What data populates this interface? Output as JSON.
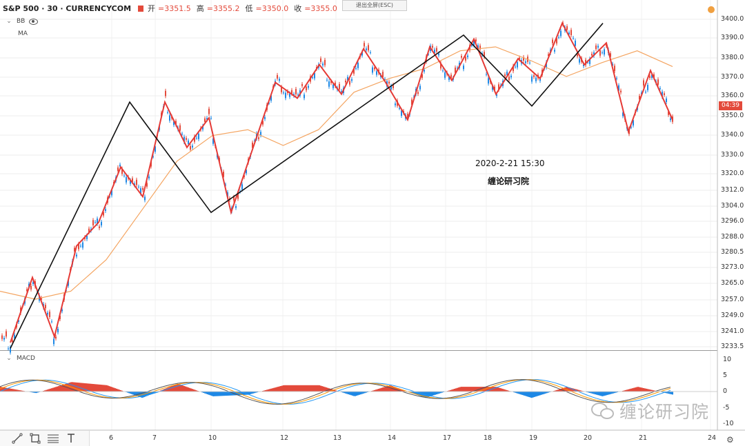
{
  "header": {
    "symbol": "S&P 500 · 30 · CURRENCYCOM",
    "open_label": "开",
    "open_value": "=3351.5",
    "high_label": "高",
    "high_value": "=3355.2",
    "low_label": "低",
    "low_value": "=3350.0",
    "close_label": "收",
    "close_value": "=3355.0"
  },
  "indicators": {
    "bb": "BB",
    "ma": "MA",
    "macd": "MACD"
  },
  "exit_fullscreen": "退出全屏(ESC)",
  "current_price_tag": "04:39",
  "annotation": {
    "datetime": "2020-2-21  15:30",
    "author": "缠论研习院"
  },
  "watermark": "缠论研习院",
  "colors": {
    "up": "#26a69a",
    "down": "#e34a3b",
    "bar": "#1e88e5",
    "zigzag_red": "#e53935",
    "zigzag_black": "#111111",
    "ma": "#f4a460"
  },
  "chart_data": {
    "type": "line",
    "title": "S&P 500 · 30 · CURRENCYCOM",
    "price_axis": [
      "3400.0",
      "3390.0",
      "3380.0",
      "3370.0",
      "3360.0",
      "3350.0",
      "3340.0",
      "3330.0",
      "3320.0",
      "3312.0",
      "3304.0",
      "3296.0",
      "3288.0",
      "3280.5",
      "3273.0",
      "3265.0",
      "3257.0",
      "3249.0",
      "3241.0",
      "3233.5"
    ],
    "macd_axis": [
      "10",
      "5",
      "0",
      "-5",
      "-10"
    ],
    "time_axis": [
      "6",
      "7",
      "10",
      "12",
      "13",
      "14",
      "17",
      "18",
      "19",
      "20",
      "21",
      "24"
    ],
    "ylim": [
      3233.5,
      3400
    ],
    "macd_ylim": [
      -10,
      10
    ],
    "zigzag_red": [
      [
        0,
        3236
      ],
      [
        1,
        3269
      ],
      [
        2,
        3239
      ],
      [
        3,
        3285
      ],
      [
        4,
        3297
      ],
      [
        5,
        3325
      ],
      [
        6,
        3310
      ],
      [
        7,
        3358
      ],
      [
        8,
        3335
      ],
      [
        9,
        3350
      ],
      [
        10,
        3302
      ],
      [
        11,
        3335
      ],
      [
        12,
        3368
      ],
      [
        13,
        3360
      ],
      [
        14,
        3377
      ],
      [
        15,
        3362
      ],
      [
        16,
        3385
      ],
      [
        17,
        3368
      ],
      [
        18,
        3349
      ],
      [
        19,
        3386
      ],
      [
        20,
        3369
      ],
      [
        21,
        3390
      ],
      [
        22,
        3362
      ],
      [
        23,
        3380
      ],
      [
        24,
        3370
      ],
      [
        25,
        3398
      ],
      [
        26,
        3377
      ],
      [
        27,
        3388
      ],
      [
        28,
        3343
      ],
      [
        29,
        3374
      ],
      [
        30,
        3349
      ]
    ],
    "zigzag_black": [
      [
        0,
        3233
      ],
      [
        1,
        3358
      ],
      [
        2,
        3302
      ],
      [
        3,
        3392
      ],
      [
        4,
        3356
      ],
      [
        5,
        3398
      ]
    ],
    "ma": [
      [
        0,
        3262
      ],
      [
        1,
        3258
      ],
      [
        2,
        3262
      ],
      [
        3,
        3278
      ],
      [
        4,
        3303
      ],
      [
        5,
        3328
      ],
      [
        6,
        3341
      ],
      [
        7,
        3344
      ],
      [
        8,
        3336
      ],
      [
        9,
        3344
      ],
      [
        10,
        3363
      ],
      [
        11,
        3370
      ],
      [
        12,
        3375
      ],
      [
        13,
        3384
      ],
      [
        14,
        3386
      ],
      [
        15,
        3379
      ],
      [
        16,
        3371
      ],
      [
        17,
        3378
      ],
      [
        18,
        3384
      ],
      [
        19,
        3376
      ]
    ],
    "macd_hist": [
      [
        0,
        3
      ],
      [
        1,
        -1
      ],
      [
        2,
        6
      ],
      [
        3,
        4
      ],
      [
        4,
        -4
      ],
      [
        5,
        5
      ],
      [
        6,
        -3
      ],
      [
        7,
        -2
      ],
      [
        8,
        4
      ],
      [
        9,
        4
      ],
      [
        10,
        -3
      ],
      [
        11,
        4
      ],
      [
        12,
        -4
      ],
      [
        13,
        3
      ],
      [
        14,
        3
      ],
      [
        15,
        -4
      ],
      [
        16,
        3
      ],
      [
        17,
        -3
      ],
      [
        18,
        3
      ],
      [
        19,
        -2
      ]
    ],
    "grid": true
  }
}
